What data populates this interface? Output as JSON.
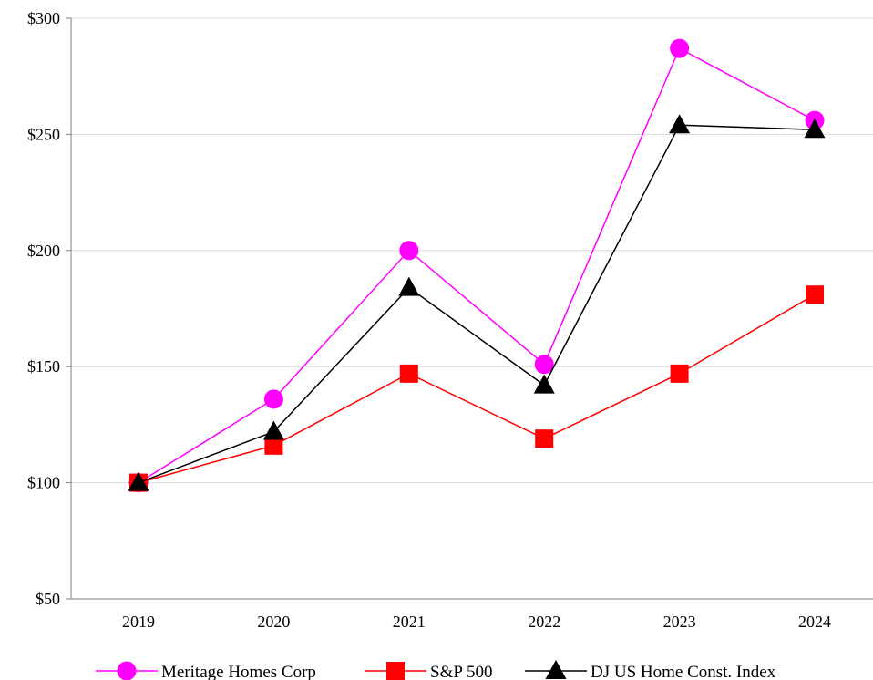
{
  "chart_data": {
    "type": "line",
    "title": "",
    "xlabel": "",
    "ylabel": "",
    "categories": [
      "2019",
      "2020",
      "2021",
      "2022",
      "2023",
      "2024"
    ],
    "ylim": [
      50,
      300
    ],
    "y_ticks": [
      {
        "value": 50,
        "label": "$50"
      },
      {
        "value": 100,
        "label": "$100"
      },
      {
        "value": 150,
        "label": "$150"
      },
      {
        "value": 200,
        "label": "$200"
      },
      {
        "value": 250,
        "label": "$250"
      },
      {
        "value": 300,
        "label": "$300"
      }
    ],
    "grid": "horizontal",
    "legend_position": "bottom",
    "series": [
      {
        "name": "Meritage Homes Corp",
        "color": "#ff00ff",
        "marker": "circle",
        "values": [
          100,
          136,
          200,
          151,
          287,
          256
        ]
      },
      {
        "name": "S&P 500",
        "color": "#ff0000",
        "marker": "square",
        "values": [
          100,
          116,
          147,
          119,
          147,
          181
        ]
      },
      {
        "name": "DJ US Home Const. Index",
        "color": "#000000",
        "marker": "triangle",
        "values": [
          100,
          122,
          184,
          142,
          254,
          252
        ]
      }
    ]
  }
}
